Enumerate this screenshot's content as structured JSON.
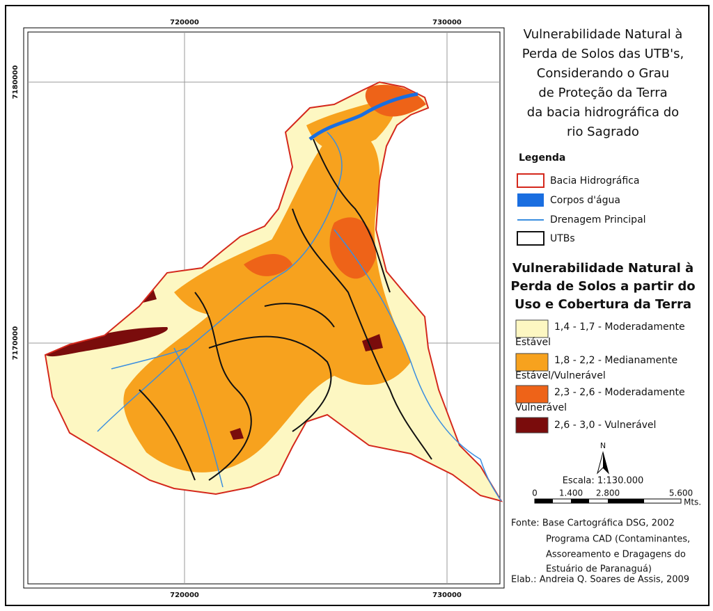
{
  "map": {
    "grid_labels": {
      "x": [
        "720000",
        "730000"
      ],
      "y": [
        "7180000",
        "7170000"
      ]
    }
  },
  "title": {
    "lines": [
      "Vulnerabilidade Natural à",
      "Perda de Solos das UTB's,",
      "Considerando o Grau",
      "de Proteção da Terra",
      "da bacia hidrográfica do",
      "rio Sagrado"
    ]
  },
  "legend": {
    "title": "Legenda",
    "items": [
      "Bacia Hidrográfica",
      "Corpos d'água",
      "Drenagem Principal",
      "UTBs"
    ]
  },
  "classes": {
    "title_lines": [
      "Vulnerabilidade Natural à",
      "Perda de Solos a partir do",
      "Uso e Cobertura da Terra"
    ],
    "items": [
      [
        "1,4 - 1,7 - Moderadamente",
        "Estável"
      ],
      [
        "1,8 - 2,2 - Medianamente",
        "Estável/Vulnerável"
      ],
      [
        "2,3 - 2,6 -  Moderadamente",
        "Vulnerável"
      ],
      [
        "2,6 - 3,0 -  Vulnerável"
      ]
    ]
  },
  "north": "N",
  "scale": {
    "title": "Escala: 1:130.000",
    "labels": [
      "0",
      "1.400",
      "2.800",
      "5.600"
    ],
    "unit": "Mts."
  },
  "source": [
    "Fonte: Base Cartográfica DSG, 2002",
    "Programa CAD (Contaminantes,",
    "Assoreamento e Dragagens do",
    "Estuário de Paranaguá)",
    "Elab.: Andreia Q. Soares de Assis, 2009"
  ]
}
